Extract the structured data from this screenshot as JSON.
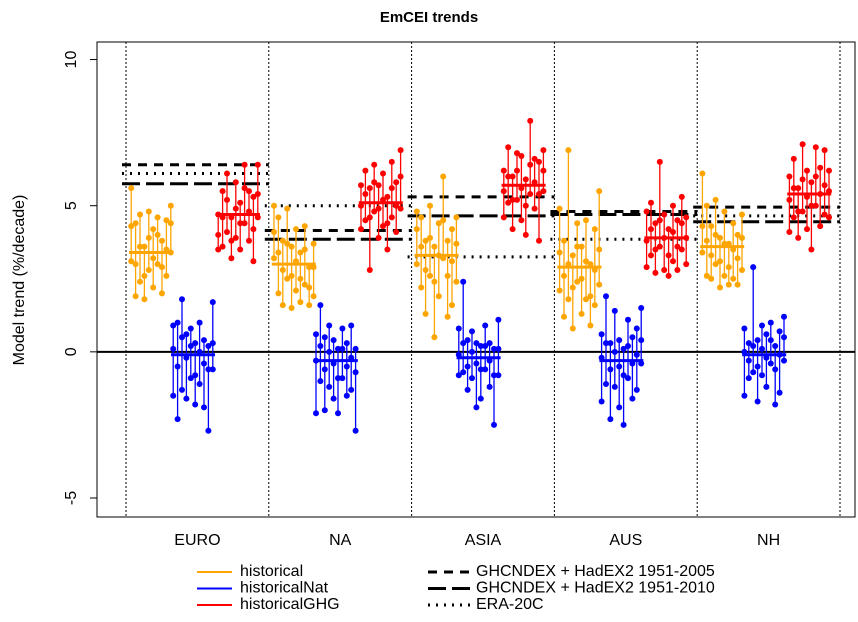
{
  "chart_data": {
    "type": "range-dot",
    "title": "EmCEI trends",
    "y_label": "Model trend (%/decade)",
    "categories": [
      "EURO",
      "NA",
      "ASIA",
      "AUS",
      "NH"
    ],
    "ylim": [
      -5.65,
      10.6
    ],
    "yticks": [
      -5,
      0,
      5,
      10
    ],
    "series": [
      {
        "name": "historical",
        "color": "#FFA500",
        "means": [
          3.4,
          3.0,
          3.3,
          2.9,
          3.6
        ],
        "values": [
          [
            4.3,
            3.0,
            3.6,
            2.6,
            3.9,
            3.2,
            4.0,
            2.9,
            3.5,
            4.4
          ],
          [
            4.1,
            3.4,
            2.8,
            3.7,
            2.6,
            3.1,
            2.5,
            3.5,
            2.2,
            2.9
          ],
          [
            4.2,
            3.6,
            2.8,
            3.9,
            2.4,
            3.3,
            4.5,
            2.6,
            3.1,
            3.7
          ],
          [
            3.4,
            2.6,
            3.0,
            2.2,
            3.6,
            2.5,
            3.1,
            1.9,
            2.8,
            3.5
          ],
          [
            4.3,
            3.8,
            3.3,
            4.0,
            3.1,
            3.7,
            2.9,
            3.5,
            3.2,
            3.9
          ]
        ],
        "lows": [
          [
            3.1,
            1.9,
            2.4,
            1.8,
            2.8,
            2.2,
            3.0,
            2.0,
            2.6,
            3.4
          ],
          [
            3.2,
            2.0,
            1.6,
            2.5,
            1.5,
            2.1,
            1.7,
            2.3,
            1.6,
            1.9
          ],
          [
            3.0,
            2.2,
            1.3,
            2.6,
            0.5,
            1.9,
            3.2,
            1.2,
            1.6,
            2.4
          ],
          [
            2.1,
            1.2,
            1.8,
            0.8,
            2.4,
            1.3,
            1.8,
            0.9,
            1.6,
            2.3
          ],
          [
            3.4,
            2.6,
            2.5,
            3.0,
            2.2,
            2.6,
            2.3,
            2.5,
            2.3,
            2.8
          ]
        ],
        "highs": [
          [
            5.6,
            4.4,
            4.7,
            3.6,
            4.8,
            4.2,
            4.6,
            3.8,
            4.5,
            5.0
          ],
          [
            5.0,
            4.6,
            3.8,
            4.9,
            3.6,
            4.2,
            3.4,
            4.3,
            2.9,
            3.7
          ],
          [
            4.8,
            4.6,
            3.8,
            5.0,
            3.6,
            4.4,
            6.0,
            3.8,
            4.2,
            4.6
          ],
          [
            4.9,
            3.8,
            6.9,
            3.3,
            4.4,
            3.6,
            4.5,
            3.0,
            4.2,
            5.5
          ],
          [
            6.1,
            5.0,
            4.3,
            5.2,
            3.9,
            4.8,
            3.7,
            4.4,
            4.0,
            4.7
          ]
        ]
      },
      {
        "name": "historicalNat",
        "color": "#0000FF",
        "means": [
          -0.1,
          -0.3,
          -0.2,
          -0.3,
          -0.1
        ],
        "values": [
          [
            0.1,
            -0.5,
            0.5,
            -0.2,
            0.2,
            -0.8,
            0.0,
            -0.4,
            -0.6,
            0.3
          ],
          [
            -0.3,
            0.2,
            -0.6,
            0.0,
            -0.4,
            -0.9,
            0.1,
            -0.5,
            -0.2,
            -0.7
          ],
          [
            -0.1,
            0.3,
            -0.5,
            0.0,
            -0.4,
            -0.6,
            0.2,
            -0.3,
            -0.8,
            0.1
          ],
          [
            -0.2,
            0.3,
            -0.6,
            0.0,
            -0.5,
            -0.8,
            0.2,
            -0.4,
            -0.1,
            0.4
          ],
          [
            0.0,
            -0.3,
            0.2,
            -0.5,
            0.1,
            -0.2,
            0.4,
            -0.6,
            -0.1,
            0.5
          ]
        ],
        "lows": [
          [
            -1.5,
            -2.3,
            -1.3,
            -1.6,
            -0.9,
            -1.8,
            -1.1,
            -1.9,
            -2.7,
            -0.6
          ],
          [
            -2.1,
            -1.0,
            -2.0,
            -1.2,
            -1.6,
            -2.1,
            -0.9,
            -1.5,
            -1.3,
            -2.7
          ],
          [
            -0.8,
            -0.7,
            -1.3,
            -0.9,
            -1.9,
            -1.6,
            -0.6,
            -1.2,
            -2.5,
            -0.8
          ],
          [
            -1.7,
            -1.1,
            -2.3,
            -1.2,
            -1.9,
            -2.5,
            -0.9,
            -1.6,
            -1.3,
            -0.4
          ],
          [
            -1.5,
            -0.9,
            -0.7,
            -1.7,
            -0.8,
            -1.2,
            -0.4,
            -1.8,
            -1.4,
            -0.3
          ]
        ],
        "highs": [
          [
            0.9,
            1.0,
            1.8,
            0.6,
            0.8,
            0.3,
            1.0,
            0.4,
            0.2,
            1.7
          ],
          [
            0.6,
            1.6,
            0.5,
            0.9,
            0.4,
            0.1,
            0.8,
            0.3,
            0.9,
            0.1
          ],
          [
            0.8,
            2.4,
            0.4,
            0.7,
            0.3,
            0.2,
            0.9,
            0.3,
            0.1,
            1.1
          ],
          [
            0.6,
            1.9,
            0.3,
            1.4,
            0.4,
            0.1,
            1.1,
            0.5,
            0.8,
            1.5
          ],
          [
            0.8,
            0.3,
            2.9,
            0.4,
            0.9,
            0.6,
            1.0,
            0.2,
            0.7,
            1.2
          ]
        ]
      },
      {
        "name": "historicalGHG",
        "color": "#FF0000",
        "means": [
          4.7,
          5.1,
          5.7,
          3.9,
          5.4
        ],
        "values": [
          [
            4.0,
            4.6,
            5.2,
            3.8,
            4.9,
            4.4,
            5.6,
            4.8,
            4.2,
            5.4
          ],
          [
            5.0,
            5.4,
            4.6,
            5.8,
            4.9,
            5.2,
            4.4,
            5.6,
            5.0,
            6.0
          ],
          [
            5.5,
            6.0,
            5.2,
            6.2,
            5.6,
            5.0,
            6.4,
            5.8,
            5.4,
            6.2
          ],
          [
            3.8,
            4.2,
            3.5,
            4.5,
            3.9,
            3.3,
            4.1,
            3.6,
            4.4,
            3.9
          ],
          [
            5.2,
            5.6,
            4.8,
            5.9,
            5.3,
            5.0,
            6.0,
            5.4,
            5.7,
            5.5
          ]
        ],
        "lows": [
          [
            3.5,
            3.6,
            4.1,
            3.2,
            3.9,
            3.5,
            4.4,
            3.8,
            3.1,
            4.6
          ],
          [
            4.2,
            4.5,
            2.8,
            4.8,
            3.9,
            4.3,
            3.5,
            4.6,
            4.1,
            4.9
          ],
          [
            4.6,
            5.1,
            4.2,
            5.2,
            4.5,
            4.0,
            5.4,
            4.9,
            3.8,
            5.5
          ],
          [
            2.9,
            3.3,
            2.7,
            3.6,
            2.8,
            2.6,
            3.1,
            2.8,
            3.5,
            3.0
          ],
          [
            4.1,
            4.6,
            3.9,
            4.8,
            4.2,
            3.5,
            5.0,
            4.3,
            4.7,
            4.6
          ]
        ],
        "highs": [
          [
            4.7,
            5.5,
            6.1,
            4.6,
            5.8,
            5.1,
            6.4,
            5.5,
            5.3,
            6.4
          ],
          [
            5.7,
            6.2,
            5.6,
            6.4,
            5.7,
            6.1,
            5.3,
            6.5,
            5.8,
            6.9
          ],
          [
            6.2,
            7.0,
            6.0,
            6.8,
            6.7,
            5.9,
            7.9,
            6.6,
            6.5,
            6.9
          ],
          [
            4.8,
            5.1,
            4.4,
            6.5,
            4.7,
            4.2,
            5.0,
            4.5,
            5.3,
            4.6
          ],
          [
            6.0,
            6.6,
            5.6,
            7.1,
            6.2,
            5.8,
            7.0,
            6.3,
            6.9,
            6.2
          ]
        ]
      }
    ],
    "reference_lines": [
      {
        "name": "GHCNDEX + HadEX2 1951-2005",
        "style": "dashed",
        "values": [
          6.4,
          4.15,
          5.3,
          4.8,
          4.95
        ]
      },
      {
        "name": "GHCNDEX + HadEX2 1951-2010",
        "style": "longdash",
        "values": [
          5.75,
          3.85,
          4.65,
          4.7,
          4.45
        ]
      },
      {
        "name": "ERA-20C",
        "style": "dotted",
        "values": [
          6.1,
          5.0,
          3.25,
          3.85,
          4.65
        ]
      }
    ]
  }
}
